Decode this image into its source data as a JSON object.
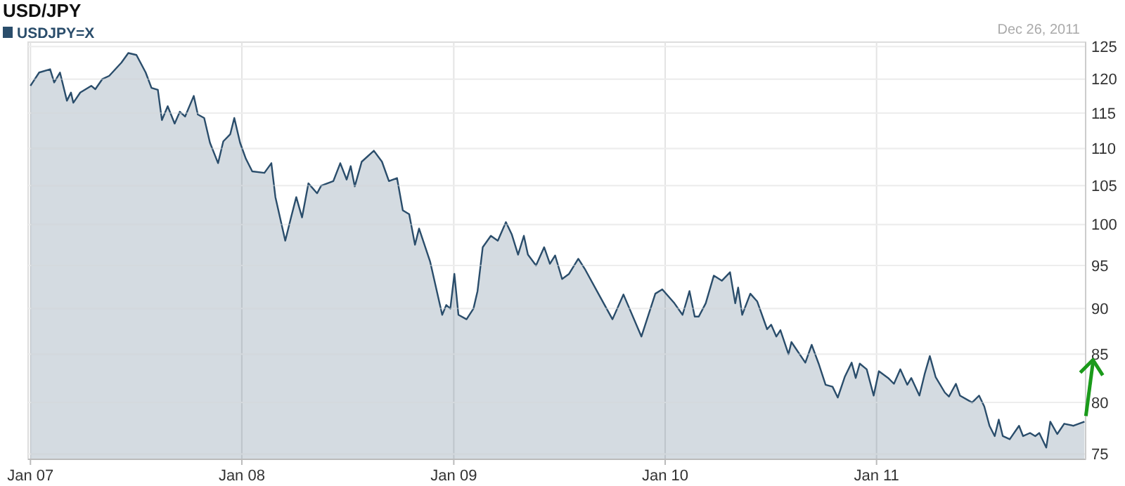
{
  "chart_data": {
    "type": "area",
    "title": "USD/JPY",
    "log": "y",
    "grid": true,
    "legend": "top left",
    "annotations": [
      "Dec 26, 2011"
    ],
    "xlim": [
      "2006-12-28",
      "2011-12-28"
    ],
    "ylim": [
      74.5,
      125.7
    ],
    "xticks": [
      {
        "value": "2007-01-01",
        "label": "Jan 07"
      },
      {
        "value": "2008-01-01",
        "label": "Jan 08"
      },
      {
        "value": "2009-01-01",
        "label": "Jan 09"
      },
      {
        "value": "2010-01-01",
        "label": "Jan 10"
      },
      {
        "value": "2011-01-01",
        "label": "Jan 11"
      }
    ],
    "yticks": [
      75,
      80,
      85,
      90,
      95,
      100,
      105,
      110,
      115,
      120,
      125
    ],
    "x": [
      "2007-01-01",
      "2007-01-16",
      "2007-02-04",
      "2007-02-11",
      "2007-02-21",
      "2007-03-05",
      "2007-03-12",
      "2007-03-16",
      "2007-03-28",
      "2007-04-16",
      "2007-04-23",
      "2007-05-05",
      "2007-05-17",
      "2007-06-07",
      "2007-06-19",
      "2007-07-03",
      "2007-07-19",
      "2007-07-29",
      "2007-08-09",
      "2007-08-16",
      "2007-08-26",
      "2007-09-07",
      "2007-09-16",
      "2007-09-25",
      "2007-10-10",
      "2007-10-17",
      "2007-10-28",
      "2007-11-07",
      "2007-11-21",
      "2007-11-30",
      "2007-12-12",
      "2007-12-19",
      "2007-12-29",
      "2008-01-08",
      "2008-01-19",
      "2008-02-09",
      "2008-02-21",
      "2008-02-28",
      "2008-03-16",
      "2008-03-26",
      "2008-04-04",
      "2008-04-14",
      "2008-04-25",
      "2008-05-10",
      "2008-05-17",
      "2008-06-07",
      "2008-06-19",
      "2008-06-30",
      "2008-07-07",
      "2008-07-14",
      "2008-07-26",
      "2008-08-16",
      "2008-08-30",
      "2008-09-11",
      "2008-09-25",
      "2008-10-05",
      "2008-10-16",
      "2008-10-26",
      "2008-11-02",
      "2008-11-21",
      "2008-12-12",
      "2008-12-19",
      "2008-12-26",
      "2009-01-02",
      "2009-01-09",
      "2009-01-23",
      "2009-02-04",
      "2009-02-11",
      "2009-02-20",
      "2009-03-06",
      "2009-03-18",
      "2009-04-01",
      "2009-04-11",
      "2009-04-22",
      "2009-05-02",
      "2009-05-09",
      "2009-05-23",
      "2009-06-06",
      "2009-06-16",
      "2009-06-25",
      "2009-07-07",
      "2009-07-19",
      "2009-08-04",
      "2009-08-16",
      "2009-09-11",
      "2009-10-02",
      "2009-10-21",
      "2009-11-21",
      "2009-12-15",
      "2009-12-27",
      "2010-01-17",
      "2010-01-31",
      "2010-02-12",
      "2010-02-21",
      "2010-02-28",
      "2010-03-12",
      "2010-03-26",
      "2010-04-09",
      "2010-04-23",
      "2010-05-02",
      "2010-05-07",
      "2010-05-14",
      "2010-05-28",
      "2010-06-09",
      "2010-06-26",
      "2010-07-03",
      "2010-07-12",
      "2010-07-19",
      "2010-08-02",
      "2010-08-07",
      "2010-08-31",
      "2010-09-11",
      "2010-09-23",
      "2010-10-05",
      "2010-10-17",
      "2010-10-26",
      "2010-11-07",
      "2010-11-19",
      "2010-11-26",
      "2010-12-03",
      "2010-12-15",
      "2010-12-27",
      "2011-01-05",
      "2011-01-21",
      "2011-01-31",
      "2011-02-11",
      "2011-02-23",
      "2011-03-02",
      "2011-03-16",
      "2011-03-25",
      "2011-04-03",
      "2011-04-13",
      "2011-04-29",
      "2011-05-06",
      "2011-05-18",
      "2011-05-25",
      "2011-06-15",
      "2011-06-27",
      "2011-07-06",
      "2011-07-15",
      "2011-07-24",
      "2011-07-31",
      "2011-08-07",
      "2011-08-19",
      "2011-09-04",
      "2011-09-11",
      "2011-09-23",
      "2011-10-02",
      "2011-10-09",
      "2011-10-21",
      "2011-10-28",
      "2011-11-09",
      "2011-11-21",
      "2011-12-07",
      "2011-12-26"
    ],
    "series": [
      {
        "name": "USDJPY=X",
        "color": "#2a4d6b",
        "values": [
          119,
          121,
          121.5,
          119.5,
          121,
          116.8,
          118,
          116.5,
          118,
          119,
          118.5,
          120,
          120.5,
          122.5,
          124,
          123.7,
          121,
          118.7,
          118.4,
          114,
          116,
          113.5,
          115.2,
          114.5,
          117.5,
          114.8,
          114.3,
          110.8,
          108,
          111,
          112,
          114.3,
          110.8,
          108.6,
          106.9,
          106.7,
          108,
          103.5,
          98,
          100.9,
          103.5,
          100.9,
          105.3,
          104,
          105,
          105.6,
          108,
          105.8,
          107.6,
          104.9,
          108.2,
          109.7,
          108.2,
          105.6,
          106,
          101.8,
          101.3,
          97.5,
          99.5,
          95.5,
          89.3,
          90.4,
          90,
          94,
          89.3,
          88.8,
          90,
          92,
          97.2,
          98.6,
          98,
          100.3,
          98.8,
          96.3,
          98.6,
          96.3,
          95,
          97.2,
          95.2,
          96.2,
          93.4,
          94,
          95.8,
          94.5,
          91.3,
          88.8,
          91.6,
          86.9,
          91.7,
          92.2,
          90.6,
          89.3,
          92,
          89.1,
          89.1,
          90.6,
          93.8,
          93.2,
          94.2,
          90.6,
          92.4,
          89.3,
          91.7,
          90.8,
          87.7,
          88.2,
          86.9,
          87.6,
          85,
          86.3,
          84.1,
          86,
          84,
          81.8,
          81.6,
          80.5,
          82.6,
          84.1,
          82.5,
          84,
          83.4,
          80.7,
          83.2,
          82.5,
          81.9,
          83.4,
          81.8,
          82.5,
          80.7,
          82.9,
          84.8,
          82.6,
          81,
          80.6,
          81.9,
          80.7,
          80,
          80.7,
          79.6,
          77.7,
          76.7,
          78.3,
          76.7,
          76.4,
          77.7,
          76.7,
          77,
          76.7,
          77,
          75.6,
          78.1,
          76.9,
          77.9,
          77.7,
          78.1
        ]
      }
    ]
  }
}
